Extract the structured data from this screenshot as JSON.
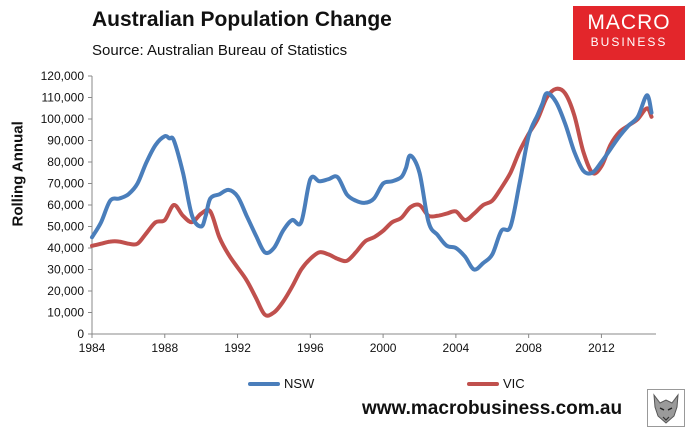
{
  "header": {
    "title": "Australian Population Change",
    "source": "Source: Australian Bureau of Statistics"
  },
  "logo": {
    "line1": "MACRO",
    "line2": "BUSINESS"
  },
  "footer": {
    "website": "www.macrobusiness.com.au"
  },
  "colors": {
    "nsw": "#4a7ebb",
    "vic": "#c0504d",
    "logo_bg": "#e3262b"
  },
  "chart_data": {
    "type": "line",
    "title": "Australian Population Change",
    "xlabel": "",
    "ylabel": "Rolling Annual",
    "xlim": [
      1984,
      2015
    ],
    "ylim": [
      0,
      120000
    ],
    "xticks": [
      1984,
      1988,
      1992,
      1996,
      2000,
      2004,
      2008,
      2012
    ],
    "xtick_labels": [
      "1984",
      "1988",
      "1992",
      "1996",
      "2000",
      "2004",
      "2008",
      "2012"
    ],
    "yticks": [
      0,
      10000,
      20000,
      30000,
      40000,
      50000,
      60000,
      70000,
      80000,
      90000,
      100000,
      110000,
      120000
    ],
    "ytick_labels": [
      "0",
      "10,000",
      "20,000",
      "30,000",
      "40,000",
      "50,000",
      "60,000",
      "70,000",
      "80,000",
      "90,000",
      "100,000",
      "110,000",
      "120,000"
    ],
    "legend_position": "bottom",
    "grid": false,
    "series": [
      {
        "name": "NSW",
        "color": "#4a7ebb",
        "x": [
          1984.0,
          1984.5,
          1985.0,
          1985.5,
          1986.0,
          1986.5,
          1987.0,
          1987.5,
          1988.0,
          1988.25,
          1988.5,
          1989.0,
          1989.5,
          1990.0,
          1990.25,
          1990.5,
          1991.0,
          1991.5,
          1992.0,
          1992.5,
          1993.0,
          1993.5,
          1994.0,
          1994.5,
          1995.0,
          1995.5,
          1996.0,
          1996.5,
          1997.0,
          1997.5,
          1998.0,
          1998.5,
          1999.0,
          1999.5,
          2000.0,
          2000.5,
          2001.0,
          2001.25,
          2001.5,
          2002.0,
          2002.5,
          2003.0,
          2003.5,
          2004.0,
          2004.5,
          2005.0,
          2005.5,
          2006.0,
          2006.5,
          2007.0,
          2007.5,
          2008.0,
          2008.5,
          2008.75,
          2009.0,
          2009.5,
          2010.0,
          2010.5,
          2011.0,
          2011.5,
          2012.0,
          2012.5,
          2013.0,
          2013.5,
          2014.0,
          2014.5,
          2014.75
        ],
        "values": [
          45000,
          52000,
          62000,
          63000,
          65000,
          70000,
          80000,
          88000,
          92000,
          91000,
          90000,
          75000,
          55000,
          50000,
          55000,
          63000,
          65000,
          67000,
          64000,
          55000,
          46000,
          38000,
          40000,
          48000,
          53000,
          52000,
          72000,
          71000,
          72000,
          73000,
          65000,
          62000,
          61000,
          63000,
          70000,
          71000,
          73000,
          77000,
          83000,
          75000,
          52000,
          46000,
          41000,
          40000,
          36000,
          30000,
          33000,
          37000,
          48000,
          50000,
          70000,
          92000,
          102000,
          107000,
          112000,
          108000,
          98000,
          85000,
          76000,
          75000,
          80000,
          86000,
          92000,
          97000,
          101000,
          111000,
          103000
        ]
      },
      {
        "name": "VIC",
        "color": "#c0504d",
        "x": [
          1984.0,
          1984.5,
          1985.0,
          1985.5,
          1986.0,
          1986.5,
          1987.0,
          1987.5,
          1988.0,
          1988.5,
          1989.0,
          1989.5,
          1990.0,
          1990.5,
          1991.0,
          1991.5,
          1992.0,
          1992.5,
          1993.0,
          1993.5,
          1994.0,
          1994.5,
          1995.0,
          1995.5,
          1996.0,
          1996.5,
          1997.0,
          1997.5,
          1998.0,
          1998.5,
          1999.0,
          1999.5,
          2000.0,
          2000.5,
          2001.0,
          2001.5,
          2002.0,
          2002.5,
          2003.0,
          2003.5,
          2004.0,
          2004.5,
          2005.0,
          2005.5,
          2006.0,
          2006.5,
          2007.0,
          2007.5,
          2008.0,
          2008.5,
          2009.0,
          2009.5,
          2010.0,
          2010.5,
          2011.0,
          2011.5,
          2012.0,
          2012.5,
          2013.0,
          2013.5,
          2014.0,
          2014.5,
          2014.75
        ],
        "values": [
          41000,
          42000,
          43000,
          43000,
          42000,
          42000,
          47000,
          52000,
          53000,
          60000,
          55000,
          52000,
          56000,
          57000,
          45000,
          37000,
          31000,
          25000,
          17000,
          9000,
          10000,
          15000,
          22000,
          30000,
          35000,
          38000,
          37000,
          35000,
          34000,
          38000,
          43000,
          45000,
          48000,
          52000,
          54000,
          59000,
          60000,
          55000,
          55000,
          56000,
          57000,
          53000,
          56000,
          60000,
          62000,
          68000,
          75000,
          85000,
          93000,
          100000,
          110000,
          114000,
          112000,
          102000,
          85000,
          75000,
          78000,
          88000,
          94000,
          97000,
          100000,
          105000,
          101000
        ]
      }
    ]
  }
}
